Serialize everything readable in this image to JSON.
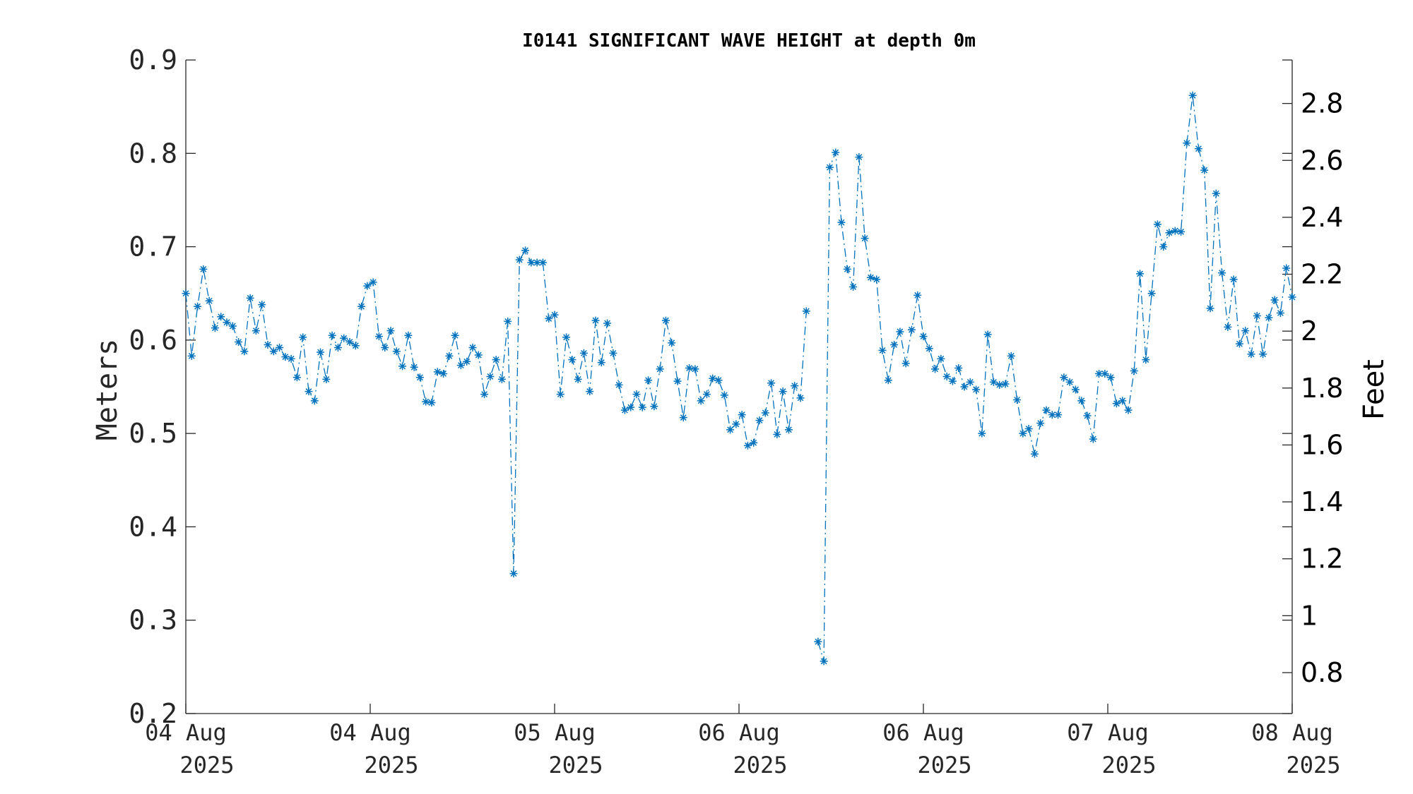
{
  "chart_data": {
    "type": "line",
    "title": "I0141 SIGNIFICANT WAVE HEIGHT at depth 0m",
    "ylabel": "Meters",
    "ylabel_right": "Feet",
    "xlabel": "",
    "ylim": [
      0.2,
      0.9
    ],
    "xlim": [
      0,
      6
    ],
    "ylim_right_feet": [
      0.6562,
      2.9528
    ],
    "yticks": [
      "0.2",
      "0.3",
      "0.4",
      "0.5",
      "0.6",
      "0.7",
      "0.8",
      "0.9"
    ],
    "yticks_right": [
      "0.8",
      "1",
      "1.2",
      "1.4",
      "1.6",
      "1.8",
      "2",
      "2.2",
      "2.4",
      "2.6",
      "2.8"
    ],
    "xticks": [
      {
        "line1": "04 Aug",
        "line2": "2025"
      },
      {
        "line1": "04 Aug",
        "line2": "2025"
      },
      {
        "line1": "05 Aug",
        "line2": "2025"
      },
      {
        "line1": "06 Aug",
        "line2": "2025"
      },
      {
        "line1": "06 Aug",
        "line2": "2025"
      },
      {
        "line1": "07 Aug",
        "line2": "2025"
      },
      {
        "line1": "08 Aug",
        "line2": "2025"
      }
    ],
    "grid": false,
    "legend": "none",
    "series_color": "#0072BD",
    "marker": "asterisk",
    "line_style": "dash-dot",
    "series": [
      {
        "values": [
          0.65,
          0.583,
          0.636,
          0.676,
          0.642,
          0.613,
          0.625,
          0.619,
          0.615,
          0.598,
          0.588,
          0.645,
          0.61,
          0.638,
          0.595,
          0.588,
          0.592,
          0.582,
          0.58,
          0.56,
          0.603,
          0.545,
          0.535,
          0.587,
          0.558,
          0.605,
          0.592,
          0.602,
          0.598,
          0.594,
          0.636,
          0.658,
          0.662,
          0.604,
          0.592,
          0.61,
          0.588,
          0.572,
          0.605,
          0.571,
          0.56,
          0.534,
          0.533,
          0.566,
          0.564,
          0.583,
          0.605,
          0.573,
          0.577,
          0.592,
          0.584,
          0.542,
          0.561,
          0.579,
          0.558,
          0.62,
          0.35,
          0.686,
          0.696,
          0.683,
          0.683,
          0.683,
          0.623,
          0.627,
          0.542,
          0.603,
          0.579,
          0.558,
          0.586,
          0.545,
          0.621,
          0.576,
          0.618,
          0.586,
          0.552,
          0.525,
          0.528,
          0.542,
          0.528,
          0.557,
          0.529,
          0.569,
          0.621,
          0.597,
          0.556,
          0.517,
          0.57,
          0.569,
          0.535,
          0.542,
          0.559,
          0.557,
          0.541,
          0.504,
          0.51,
          0.52,
          0.487,
          0.49,
          0.514,
          0.522,
          0.554,
          0.499,
          0.545,
          0.504,
          0.551,
          0.538,
          0.631,
          null,
          0.277,
          0.256,
          0.785,
          0.801,
          0.726,
          0.676,
          0.657,
          0.796,
          0.709,
          0.667,
          0.665,
          0.589,
          0.557,
          0.595,
          0.609,
          0.575,
          0.611,
          0.648,
          0.604,
          0.591,
          0.569,
          0.58,
          0.561,
          0.556,
          0.57,
          0.55,
          0.555,
          0.547,
          0.5,
          0.606,
          0.555,
          0.552,
          0.553,
          0.583,
          0.536,
          0.5,
          0.505,
          0.478,
          0.511,
          0.525,
          0.52,
          0.52,
          0.56,
          0.555,
          0.547,
          0.535,
          0.519,
          0.494,
          0.564,
          0.564,
          0.56,
          0.532,
          0.535,
          0.525,
          0.567,
          0.671,
          0.579,
          0.65,
          0.724,
          0.7,
          0.715,
          0.717,
          0.716,
          0.811,
          0.862,
          0.805,
          0.782,
          0.634,
          0.757,
          0.672,
          0.614,
          0.665,
          0.596,
          0.61,
          0.585,
          0.626,
          0.585,
          0.624,
          0.643,
          0.629,
          0.677,
          0.646
        ]
      }
    ]
  }
}
